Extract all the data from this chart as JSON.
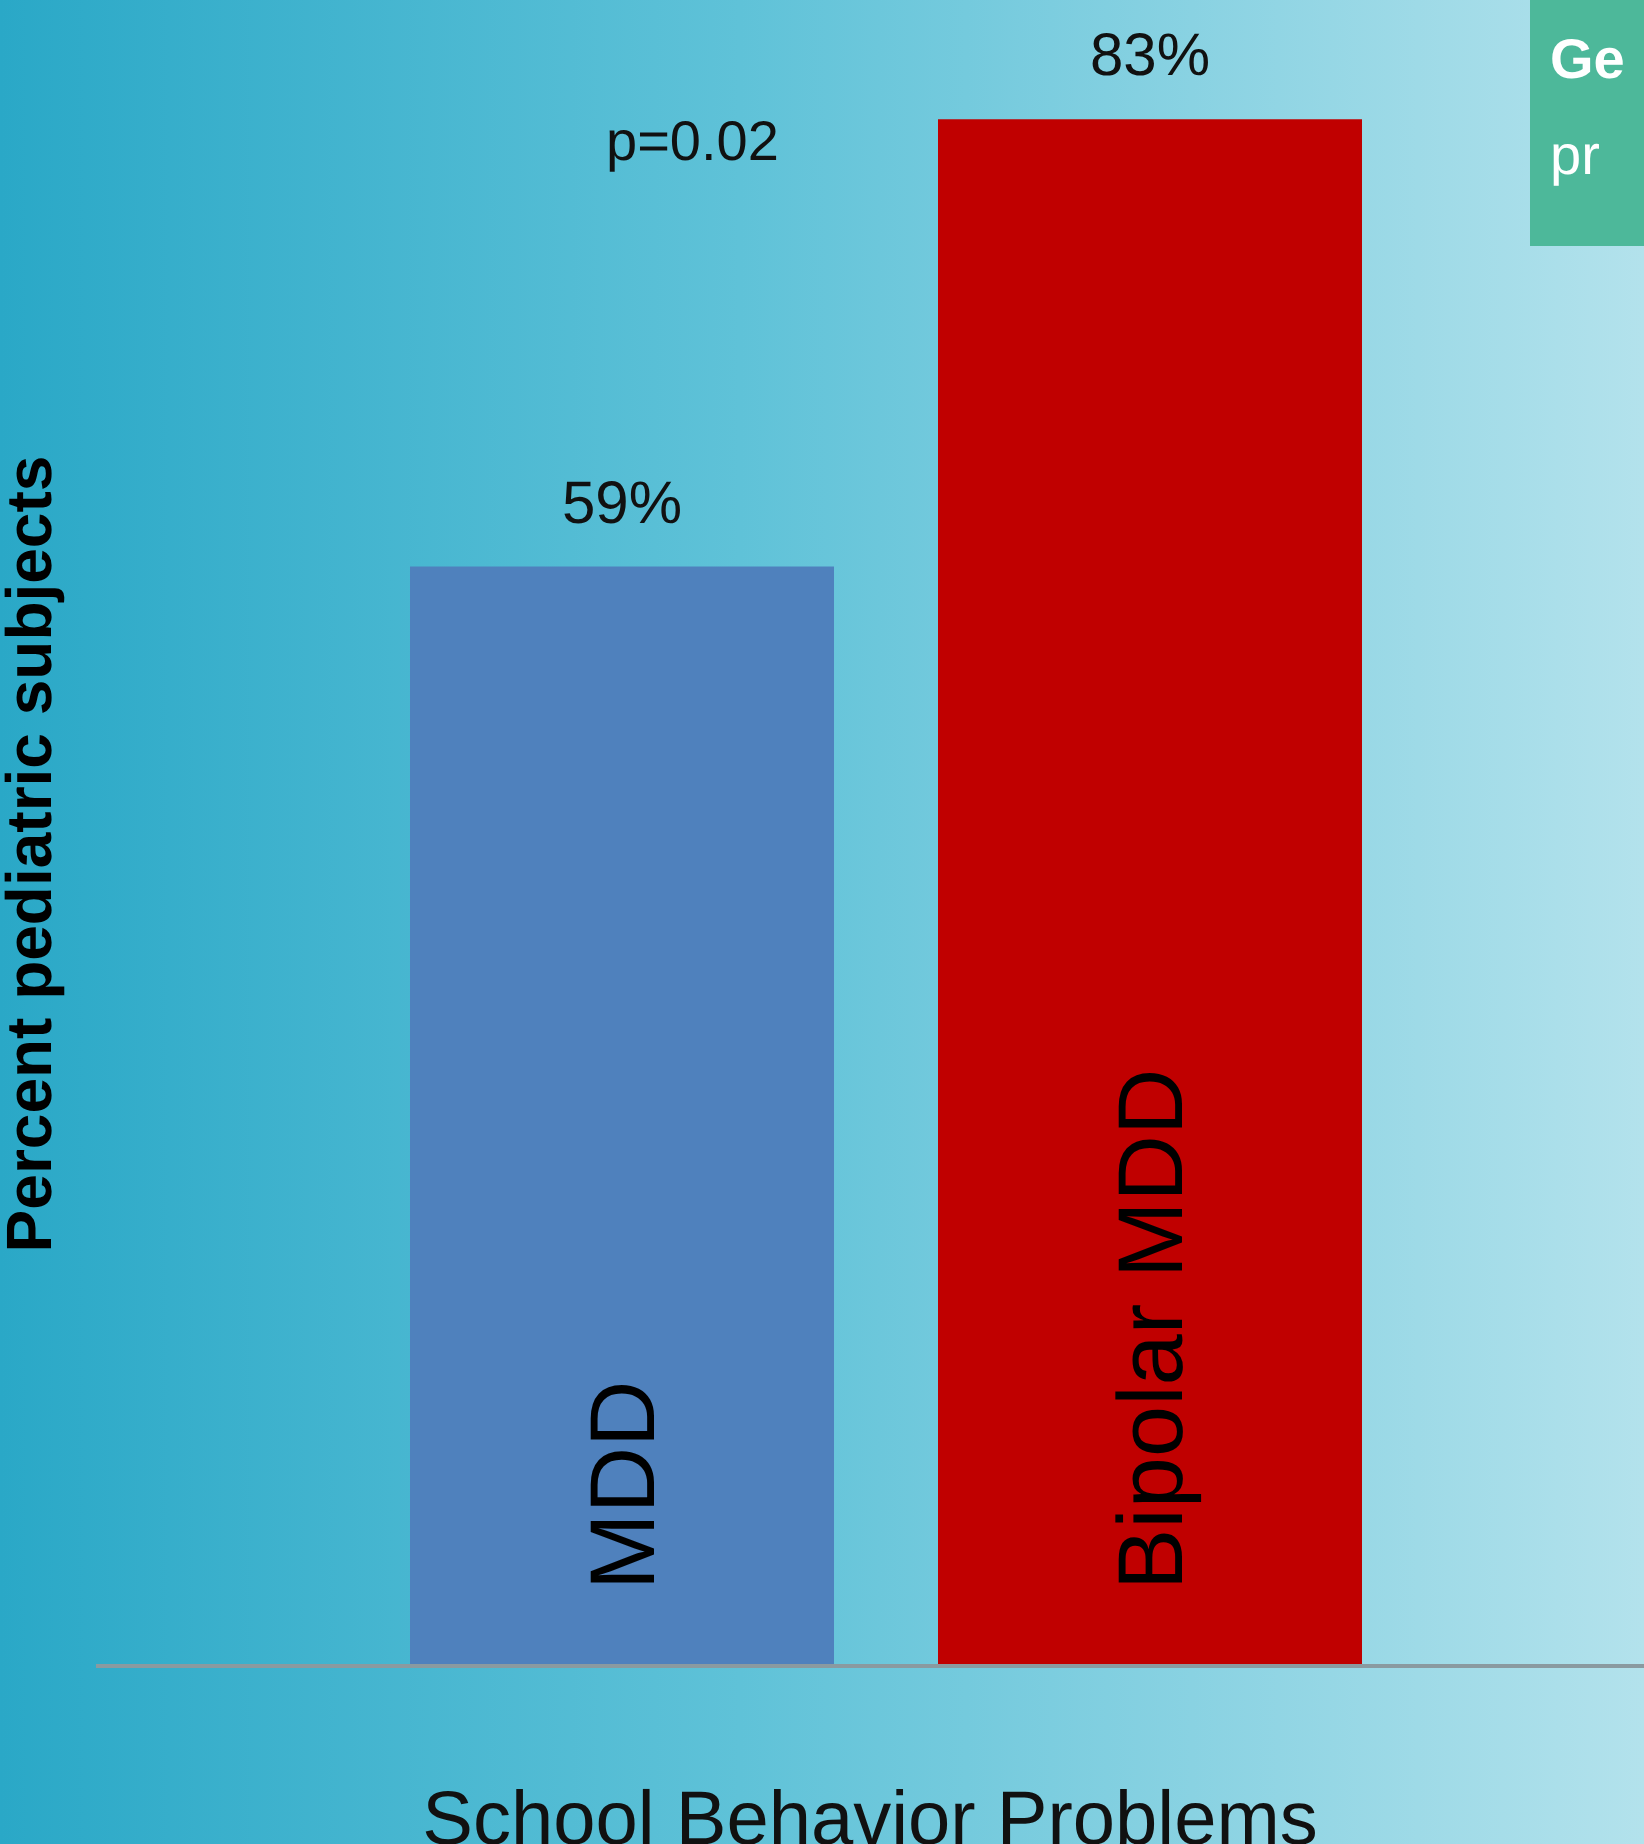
{
  "chart_data": {
    "type": "bar",
    "categories": [
      "MDD",
      "Bipolar MDD"
    ],
    "values": [
      59,
      83
    ],
    "colors": [
      "#4f81bd",
      "#c00000"
    ],
    "value_labels": [
      "59%",
      "83%"
    ],
    "xlabel": "School Behavior Problems",
    "ylabel": "Percent pediatric subjects",
    "annotations": [
      "p=0.02",
      "Ge",
      "pr"
    ]
  }
}
